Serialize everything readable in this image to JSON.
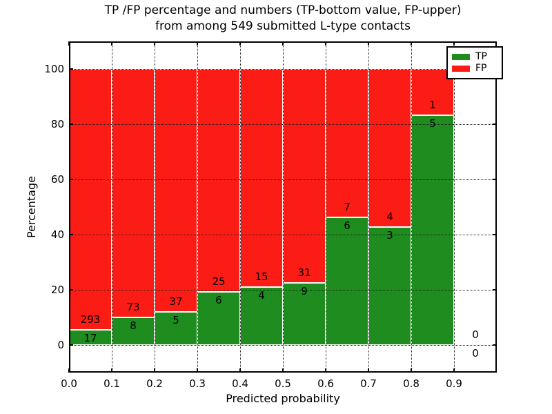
{
  "chart_data": {
    "type": "bar",
    "variant": "stacked-percentage-histogram",
    "title_line1": "TP /FP percentage and numbers (TP-bottom value, FP-upper)",
    "title_line2": "from among 549 submitted L-type contacts",
    "xlabel": "Predicted probability",
    "ylabel": "Percentage",
    "total_contacts": 549,
    "xlim": [
      0.0,
      1.0
    ],
    "ylim": [
      -10,
      110
    ],
    "bin_width": 0.1,
    "grid": "dotted, both axes, drawn over bars",
    "x_tick_labels": [
      "0.0",
      "0.1",
      "0.2",
      "0.3",
      "0.4",
      "0.5",
      "0.6",
      "0.7",
      "0.8",
      "0.9"
    ],
    "y_ticks": [
      0,
      20,
      40,
      60,
      80,
      100
    ],
    "legend": {
      "position": "upper right",
      "entries": [
        {
          "label": "TP",
          "color": "#1e8c1e"
        },
        {
          "label": "FP",
          "color": "#fb1d15"
        }
      ]
    },
    "series": [
      {
        "name": "TP",
        "counts": [
          17,
          8,
          5,
          6,
          4,
          9,
          6,
          3,
          5,
          0
        ]
      },
      {
        "name": "FP",
        "counts": [
          293,
          73,
          37,
          25,
          15,
          31,
          7,
          4,
          1,
          0
        ]
      }
    ],
    "bins": [
      {
        "x_start": 0.0,
        "x_end": 0.1,
        "tp": 17,
        "fp": 293,
        "tp_pct": 5.48,
        "fp_pct": 94.52
      },
      {
        "x_start": 0.1,
        "x_end": 0.2,
        "tp": 8,
        "fp": 73,
        "tp_pct": 9.88,
        "fp_pct": 90.12
      },
      {
        "x_start": 0.2,
        "x_end": 0.3,
        "tp": 5,
        "fp": 37,
        "tp_pct": 11.9,
        "fp_pct": 88.1
      },
      {
        "x_start": 0.3,
        "x_end": 0.4,
        "tp": 6,
        "fp": 25,
        "tp_pct": 19.35,
        "fp_pct": 80.65
      },
      {
        "x_start": 0.4,
        "x_end": 0.5,
        "tp": 4,
        "fp": 15,
        "tp_pct": 21.05,
        "fp_pct": 78.95
      },
      {
        "x_start": 0.5,
        "x_end": 0.6,
        "tp": 9,
        "fp": 31,
        "tp_pct": 22.5,
        "fp_pct": 77.5
      },
      {
        "x_start": 0.6,
        "x_end": 0.7,
        "tp": 6,
        "fp": 7,
        "tp_pct": 46.15,
        "fp_pct": 53.85
      },
      {
        "x_start": 0.7,
        "x_end": 0.8,
        "tp": 3,
        "fp": 4,
        "tp_pct": 42.86,
        "fp_pct": 57.14
      },
      {
        "x_start": 0.8,
        "x_end": 0.9,
        "tp": 5,
        "fp": 1,
        "tp_pct": 83.33,
        "fp_pct": 16.67
      },
      {
        "x_start": 0.9,
        "x_end": 1.0,
        "tp": 0,
        "fp": 0,
        "tp_pct": 0,
        "fp_pct": 0
      }
    ],
    "colors": {
      "tp": "#1e8c1e",
      "fp": "#fb1d15",
      "bar_edge": "#ffffff",
      "grid": "#1a1a1a",
      "text": "#000000",
      "background": "#ffffff"
    }
  }
}
